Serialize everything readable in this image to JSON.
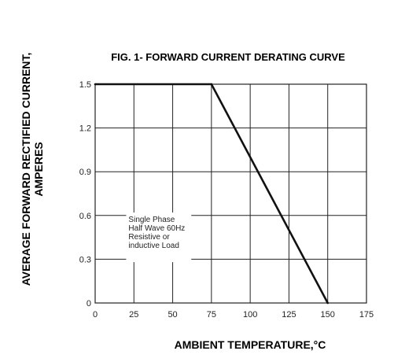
{
  "chart_data": {
    "type": "line",
    "title": "FIG. 1- FORWARD CURRENT DERATING CURVE",
    "xlabel": "AMBIENT TEMPERATURE,°C",
    "ylabel": "AVERAGE FORWARD RECTIFIED CURRENT,",
    "ylabel_line2": "AMPERES",
    "xlim": [
      0,
      175
    ],
    "ylim": [
      0,
      1.5
    ],
    "x_ticks": [
      "0",
      "25",
      "50",
      "75",
      "100",
      "125",
      "150",
      "175"
    ],
    "y_ticks": [
      "0",
      "0.3",
      "0.6",
      "0.9",
      "1.2",
      "1.5"
    ],
    "grid": true,
    "series": [
      {
        "x": [
          0,
          75,
          150
        ],
        "y": [
          1.5,
          1.5,
          0
        ]
      }
    ],
    "annotation": [
      "Single Phase",
      "Half Wave 60Hz",
      "Resistive or",
      "inductive Load"
    ]
  }
}
